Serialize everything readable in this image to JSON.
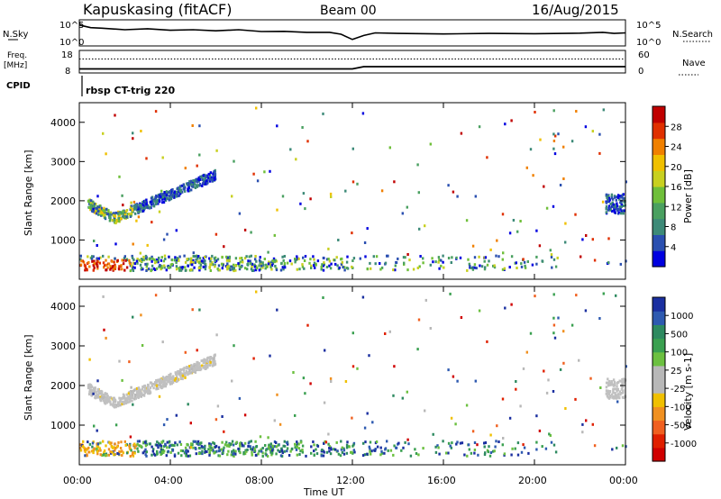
{
  "header": {
    "station": "Kapuskasing (fitACF)",
    "beam": "Beam 00",
    "date": "16/Aug/2015"
  },
  "panel_labels": {
    "nsky": "N.Sky",
    "nsearch": "N.Search",
    "freq_line1": "Freq.",
    "freq_line2": "[MHz]",
    "nave": "Nave",
    "cpid": "CPID",
    "cpid_text": "rbsp CT-trig 220"
  },
  "chart_data": [
    {
      "type": "line",
      "name": "noise",
      "left_ticks": [
        "10^5",
        "10^0"
      ],
      "right_ticks": [
        "10^5",
        "10^0"
      ],
      "x": [
        "00:00",
        "00:30",
        "01:00",
        "02:00",
        "03:00",
        "04:00",
        "05:00",
        "06:00",
        "07:00",
        "08:00",
        "09:00",
        "10:00",
        "11:00",
        "11:30",
        "12:00",
        "12:30",
        "13:00",
        "14:00",
        "16:00",
        "18:00",
        "20:00",
        "22:00",
        "23:00",
        "23:30",
        "24:00"
      ],
      "nsky_rel": [
        0.8,
        0.7,
        0.68,
        0.62,
        0.66,
        0.6,
        0.62,
        0.58,
        0.62,
        0.55,
        0.56,
        0.52,
        0.52,
        0.45,
        0.25,
        0.4,
        0.5,
        0.48,
        0.46,
        0.48,
        0.47,
        0.49,
        0.52,
        0.48,
        0.5
      ]
    },
    {
      "type": "line",
      "name": "frequency",
      "left_ticks": [
        "18",
        "8"
      ],
      "right_ticks": [
        "60",
        "0"
      ],
      "x": [
        "00:00",
        "12:00",
        "12:30",
        "24:00"
      ],
      "freq_rel": [
        0.18,
        0.18,
        0.28,
        0.28
      ],
      "nave_rel": [
        0.62,
        0.62,
        0.62,
        0.62
      ]
    },
    {
      "type": "heatmap",
      "name": "power",
      "xlim": [
        "00:00",
        "24:00"
      ],
      "ylim": [
        0,
        4500
      ],
      "y_ticks": [
        1000,
        2000,
        3000,
        4000
      ],
      "ylabel": "Slant Range [km]",
      "colorbar": {
        "label": "Power [dB]",
        "ticks": [
          "4",
          "8",
          "12",
          "16",
          "20",
          "24",
          "28"
        ],
        "colors": [
          "#0000e0",
          "#2a4fb0",
          "#3d8a78",
          "#4aa060",
          "#6fbf3a",
          "#c8d020",
          "#f0c000",
          "#f08000",
          "#e03000",
          "#c00000"
        ]
      }
    },
    {
      "type": "heatmap",
      "name": "velocity",
      "xlim": [
        "00:00",
        "24:00"
      ],
      "ylim": [
        0,
        4500
      ],
      "y_ticks": [
        1000,
        2000,
        3000,
        4000
      ],
      "ylabel": "Slant Range [km]",
      "colorbar": {
        "label": "Velocity [m s-1]",
        "ticks": [
          "1000",
          "500",
          "100",
          "25",
          "-25",
          "-100",
          "-500",
          "-1000"
        ],
        "colors": [
          "#1a2fa0",
          "#2e5ab0",
          "#2e8a60",
          "#3aa050",
          "#6cc040",
          "#b8b8b8",
          "#b8b8b8",
          "#f0c000",
          "#f09020",
          "#f06020",
          "#e02000",
          "#d00000"
        ]
      }
    }
  ],
  "x_axis": {
    "ticks": [
      "00:00",
      "04:00",
      "08:00",
      "12:00",
      "16:00",
      "20:00",
      "00:00"
    ],
    "label": "Time UT"
  }
}
